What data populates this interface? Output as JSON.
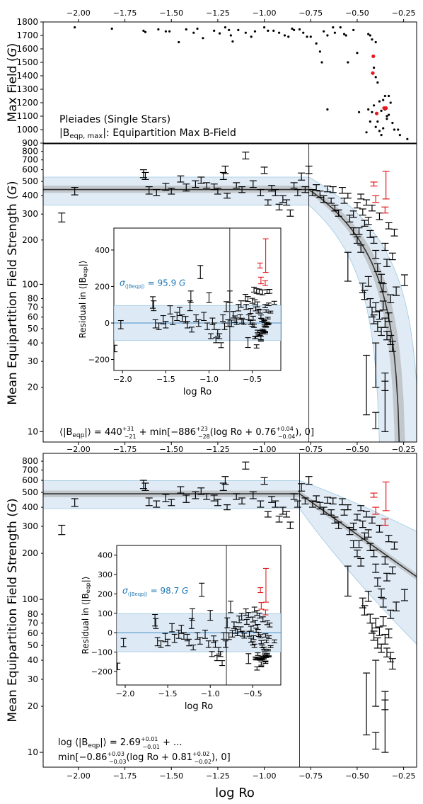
{
  "figure": {
    "xlabel": "log Ro",
    "top_xticks": [
      "−2.00",
      "−1.75",
      "−1.50",
      "−1.25",
      "−1.00",
      "−0.75",
      "−0.50",
      "−0.25"
    ]
  },
  "chart_data": [
    {
      "id": "top",
      "type": "scatter",
      "ylabel": "Max Field (G)",
      "ylim": [
        900,
        1800
      ],
      "xlim": [
        -2.19,
        -0.18
      ],
      "yticks": [
        900,
        1000,
        1100,
        1200,
        1300,
        1400,
        1500,
        1600,
        1700,
        1800
      ],
      "annotation_line1": "Pleiades (Single Stars)",
      "annotation_line2": "|B",
      "annotation_sub": "eqp, max",
      "annotation_tail": "|: Equipartition Max B-Field",
      "colors": {
        "normal": "#000000",
        "highlight": "#e41a1c"
      },
      "points": [
        {
          "x": -2.02,
          "y": 1760
        },
        {
          "x": -1.82,
          "y": 1750
        },
        {
          "x": -1.65,
          "y": 1735
        },
        {
          "x": -1.64,
          "y": 1725
        },
        {
          "x": -1.57,
          "y": 1745
        },
        {
          "x": -1.53,
          "y": 1730
        },
        {
          "x": -1.51,
          "y": 1730
        },
        {
          "x": -1.46,
          "y": 1650
        },
        {
          "x": -1.42,
          "y": 1745
        },
        {
          "x": -1.38,
          "y": 1720
        },
        {
          "x": -1.36,
          "y": 1750
        },
        {
          "x": -1.33,
          "y": 1680
        },
        {
          "x": -1.27,
          "y": 1735
        },
        {
          "x": -1.24,
          "y": 1715
        },
        {
          "x": -1.21,
          "y": 1760
        },
        {
          "x": -1.19,
          "y": 1740
        },
        {
          "x": -1.18,
          "y": 1700
        },
        {
          "x": -1.17,
          "y": 1655
        },
        {
          "x": -1.14,
          "y": 1740
        },
        {
          "x": -1.1,
          "y": 1720
        },
        {
          "x": -1.07,
          "y": 1690
        },
        {
          "x": -1.05,
          "y": 1730
        },
        {
          "x": -1.0,
          "y": 1760
        },
        {
          "x": -0.98,
          "y": 1735
        },
        {
          "x": -0.95,
          "y": 1735
        },
        {
          "x": -0.92,
          "y": 1720
        },
        {
          "x": -0.89,
          "y": 1700
        },
        {
          "x": -0.87,
          "y": 1690
        },
        {
          "x": -0.85,
          "y": 1750
        },
        {
          "x": -0.84,
          "y": 1740
        },
        {
          "x": -0.81,
          "y": 1745
        },
        {
          "x": -0.79,
          "y": 1720
        },
        {
          "x": -0.77,
          "y": 1690
        },
        {
          "x": -0.75,
          "y": 1690
        },
        {
          "x": -0.72,
          "y": 1640
        },
        {
          "x": -0.7,
          "y": 1580
        },
        {
          "x": -0.69,
          "y": 1500
        },
        {
          "x": -0.68,
          "y": 1730
        },
        {
          "x": -0.66,
          "y": 1700
        },
        {
          "x": -0.63,
          "y": 1760
        },
        {
          "x": -0.62,
          "y": 1720
        },
        {
          "x": -0.59,
          "y": 1760
        },
        {
          "x": -0.57,
          "y": 1710
        },
        {
          "x": -0.56,
          "y": 1700
        },
        {
          "x": -0.55,
          "y": 1500
        },
        {
          "x": -0.52,
          "y": 1740
        },
        {
          "x": -0.5,
          "y": 1570
        },
        {
          "x": -0.66,
          "y": 1150
        },
        {
          "x": -0.49,
          "y": 1130
        },
        {
          "x": -0.44,
          "y": 1710
        },
        {
          "x": -0.43,
          "y": 1700
        },
        {
          "x": -0.42,
          "y": 1670
        },
        {
          "x": -0.41,
          "y": 1460
        },
        {
          "x": -0.4,
          "y": 1650
        },
        {
          "x": -0.4,
          "y": 1390
        },
        {
          "x": -0.39,
          "y": 1350
        },
        {
          "x": -0.38,
          "y": 1210
        },
        {
          "x": -0.37,
          "y": 1140
        },
        {
          "x": -0.36,
          "y": 1220
        },
        {
          "x": -0.35,
          "y": 1150
        },
        {
          "x": -0.35,
          "y": 1250
        },
        {
          "x": -0.34,
          "y": 1080
        },
        {
          "x": -0.33,
          "y": 1250
        },
        {
          "x": -0.32,
          "y": 1200
        },
        {
          "x": -0.31,
          "y": 1050
        },
        {
          "x": -0.3,
          "y": 1000
        },
        {
          "x": -0.42,
          "y": 1130
        },
        {
          "x": -0.43,
          "y": 1060
        },
        {
          "x": -0.44,
          "y": 1150
        },
        {
          "x": -0.45,
          "y": 980
        },
        {
          "x": -0.41,
          "y": 1180
        },
        {
          "x": -0.39,
          "y": 1060
        },
        {
          "x": -0.38,
          "y": 990
        },
        {
          "x": -0.37,
          "y": 960
        },
        {
          "x": -0.36,
          "y": 1010
        },
        {
          "x": -0.4,
          "y": 1020
        },
        {
          "x": -0.28,
          "y": 1000
        },
        {
          "x": -0.27,
          "y": 960
        },
        {
          "x": -0.23,
          "y": 930
        },
        {
          "x": -0.34,
          "y": 1100
        },
        {
          "x": -0.33,
          "y": 1110
        },
        {
          "x": -0.413,
          "y": 1545,
          "hl": true
        },
        {
          "x": -0.416,
          "y": 1420,
          "hl": true
        },
        {
          "x": -0.395,
          "y": 1120,
          "hl": true
        },
        {
          "x": -0.355,
          "y": 1160,
          "hl": true
        },
        {
          "x": -0.345,
          "y": 1160,
          "hl": true
        }
      ]
    },
    {
      "id": "middle",
      "type": "scatter",
      "ylabel": "Mean Equipartition Field Strength (G)",
      "yscale": "log",
      "ylim": [
        8.5,
        900
      ],
      "xlim": [
        -2.19,
        -0.18
      ],
      "yticks": [
        10,
        20,
        30,
        40,
        50,
        60,
        70,
        80,
        100,
        200,
        300,
        400,
        500,
        600,
        700,
        800
      ],
      "break_x": -0.76,
      "model": {
        "plateau": 440,
        "slope": -886,
        "offset": 0.76
      },
      "formula_a": "⟨|B",
      "formula_b": "eqp",
      "formula_c": "|⟩ = 440",
      "formula_d": "+31",
      "formula_e": "−21",
      "formula_f": " + min[−886",
      "formula_g": "+23",
      "formula_h": "−28",
      "formula_i": "(log Ro + 0.76",
      "formula_j": "+0.04",
      "formula_k": "−0.04",
      "formula_l": "), 0]",
      "inset": {
        "xlabel": "log Ro",
        "ylabel": "Residual in ⟨|B",
        "ylabel_sub": "eqp",
        "ylabel_tail": "|⟩",
        "sigma_a": "σ",
        "sigma_sub": "⟨|B",
        "sigma_sub2": "eqp",
        "sigma_sub3": "|⟩",
        "sigma_b": " = 95.9 ",
        "sigma_unit": "G",
        "sigma": 95.9,
        "xlim": [
          -2.1,
          -0.17
        ],
        "ylim": [
          -260,
          520
        ],
        "xticks": [
          "−2.0",
          "−1.5",
          "−1.0",
          "−0.5"
        ],
        "xtick_vals": [
          -2.0,
          -1.5,
          -1.0,
          -0.5
        ],
        "yticks": [
          "−200",
          "0",
          "200",
          "400"
        ],
        "ytick_vals": [
          -200,
          0,
          200,
          400
        ],
        "break_x": -0.76
      }
    },
    {
      "id": "bottom",
      "type": "scatter",
      "ylabel": "Mean Equipartition Field Strength (G)",
      "yscale": "log",
      "ylim": [
        8.0,
        900
      ],
      "xlim": [
        -2.19,
        -0.18
      ],
      "yticks": [
        10,
        20,
        30,
        40,
        50,
        60,
        70,
        80,
        100,
        200,
        300,
        400,
        500,
        600,
        700,
        800
      ],
      "break_x": -0.81,
      "model": {
        "plateau_log": 2.69,
        "slope": -0.86,
        "offset": 0.81
      },
      "formula1_a": "log ⟨|B",
      "formula1_b": "eqp",
      "formula1_c": "|⟩ = 2.69",
      "formula1_d": "+0.01",
      "formula1_e": "−0.01",
      "formula1_f": " + ...",
      "formula2_a": "min[−0.86",
      "formula2_b": "+0.03",
      "formula2_c": "−0.03",
      "formula2_d": "(log Ro + 0.81",
      "formula2_e": "+0.02",
      "formula2_f": "−0.02",
      "formula2_g": "), 0]",
      "inset": {
        "xlabel": "log Ro",
        "ylabel": "Residual in ⟨|B",
        "ylabel_sub": "eqp",
        "ylabel_tail": "|⟩",
        "sigma_a": "σ",
        "sigma_sub": "⟨|B",
        "sigma_sub2": "eqp",
        "sigma_sub3": "|⟩",
        "sigma_b": " = 98.7 ",
        "sigma_unit": "G",
        "sigma": 98.7,
        "xlim": [
          -2.1,
          -0.17
        ],
        "ylim": [
          -270,
          450
        ],
        "xticks": [
          "−2.0",
          "−1.5",
          "−1.0",
          "−0.5"
        ],
        "xtick_vals": [
          -2.0,
          -1.5,
          -1.0,
          -0.5
        ],
        "yticks": [
          "−200",
          "−100",
          "0",
          "100",
          "200",
          "300",
          "400"
        ],
        "ytick_vals": [
          -200,
          -100,
          0,
          100,
          200,
          300,
          400
        ],
        "break_x": -0.81
      }
    }
  ],
  "errorbars_main": [
    {
      "x": -2.09,
      "y": 285,
      "lo": 265,
      "hi": 305
    },
    {
      "x": -2.02,
      "y": 430,
      "lo": 405,
      "hi": 455
    },
    {
      "x": -1.65,
      "y": 565,
      "lo": 530,
      "hi": 600
    },
    {
      "x": -1.64,
      "y": 545,
      "lo": 515,
      "hi": 575
    },
    {
      "x": -1.62,
      "y": 435,
      "lo": 410,
      "hi": 460
    },
    {
      "x": -1.58,
      "y": 420,
      "lo": 400,
      "hi": 440
    },
    {
      "x": -1.53,
      "y": 460,
      "lo": 435,
      "hi": 485
    },
    {
      "x": -1.5,
      "y": 430,
      "lo": 410,
      "hi": 450
    },
    {
      "x": -1.45,
      "y": 520,
      "lo": 495,
      "hi": 545
    },
    {
      "x": -1.42,
      "y": 455,
      "lo": 430,
      "hi": 480
    },
    {
      "x": -1.37,
      "y": 480,
      "lo": 455,
      "hi": 505
    },
    {
      "x": -1.34,
      "y": 510,
      "lo": 485,
      "hi": 535
    },
    {
      "x": -1.31,
      "y": 470,
      "lo": 450,
      "hi": 490
    },
    {
      "x": -1.27,
      "y": 460,
      "lo": 440,
      "hi": 480
    },
    {
      "x": -1.25,
      "y": 430,
      "lo": 410,
      "hi": 450
    },
    {
      "x": -1.22,
      "y": 545,
      "lo": 515,
      "hi": 575
    },
    {
      "x": -1.21,
      "y": 600,
      "lo": 565,
      "hi": 635
    },
    {
      "x": -1.2,
      "y": 400,
      "lo": 385,
      "hi": 415
    },
    {
      "x": -1.15,
      "y": 470,
      "lo": 450,
      "hi": 490
    },
    {
      "x": -1.12,
      "y": 440,
      "lo": 420,
      "hi": 460
    },
    {
      "x": -1.1,
      "y": 750,
      "lo": 710,
      "hi": 790
    },
    {
      "x": -1.06,
      "y": 480,
      "lo": 455,
      "hi": 505
    },
    {
      "x": -1.02,
      "y": 420,
      "lo": 400,
      "hi": 440
    },
    {
      "x": -1.0,
      "y": 595,
      "lo": 565,
      "hi": 625
    },
    {
      "x": -0.98,
      "y": 360,
      "lo": 345,
      "hi": 375
    },
    {
      "x": -0.96,
      "y": 450,
      "lo": 430,
      "hi": 470
    },
    {
      "x": -0.94,
      "y": 420,
      "lo": 400,
      "hi": 440
    },
    {
      "x": -0.92,
      "y": 335,
      "lo": 320,
      "hi": 350
    },
    {
      "x": -0.9,
      "y": 380,
      "lo": 360,
      "hi": 400
    },
    {
      "x": -0.88,
      "y": 360,
      "lo": 345,
      "hi": 375
    },
    {
      "x": -0.86,
      "y": 305,
      "lo": 290,
      "hi": 320
    },
    {
      "x": -0.84,
      "y": 470,
      "lo": 450,
      "hi": 490
    },
    {
      "x": -0.82,
      "y": 420,
      "lo": 400,
      "hi": 440
    },
    {
      "x": -0.8,
      "y": 540,
      "lo": 510,
      "hi": 570
    },
    {
      "x": -0.78,
      "y": 440,
      "lo": 420,
      "hi": 460
    },
    {
      "x": -0.76,
      "y": 600,
      "lo": 565,
      "hi": 635
    },
    {
      "x": -0.74,
      "y": 420,
      "lo": 400,
      "hi": 440
    },
    {
      "x": -0.72,
      "y": 455,
      "lo": 435,
      "hi": 475
    },
    {
      "x": -0.7,
      "y": 410,
      "lo": 390,
      "hi": 430
    },
    {
      "x": -0.68,
      "y": 380,
      "lo": 360,
      "hi": 400
    },
    {
      "x": -0.66,
      "y": 445,
      "lo": 425,
      "hi": 465
    },
    {
      "x": -0.64,
      "y": 370,
      "lo": 355,
      "hi": 385
    },
    {
      "x": -0.63,
      "y": 440,
      "lo": 420,
      "hi": 460
    },
    {
      "x": -0.62,
      "y": 330,
      "lo": 315,
      "hi": 345
    },
    {
      "x": -0.6,
      "y": 305,
      "lo": 290,
      "hi": 320
    },
    {
      "x": -0.58,
      "y": 435,
      "lo": 415,
      "hi": 455
    },
    {
      "x": -0.57,
      "y": 370,
      "lo": 355,
      "hi": 385
    },
    {
      "x": -0.55,
      "y": 400,
      "lo": 385,
      "hi": 415
    },
    {
      "x": -0.54,
      "y": 280,
      "lo": 265,
      "hi": 295
    },
    {
      "x": -0.52,
      "y": 300,
      "lo": 285,
      "hi": 315
    },
    {
      "x": -0.5,
      "y": 345,
      "lo": 330,
      "hi": 360
    },
    {
      "x": -0.49,
      "y": 230,
      "lo": 218,
      "hi": 242
    },
    {
      "x": -0.48,
      "y": 395,
      "lo": 380,
      "hi": 410
    },
    {
      "x": -0.47,
      "y": 310,
      "lo": 295,
      "hi": 325
    },
    {
      "x": -0.46,
      "y": 260,
      "lo": 248,
      "hi": 272
    },
    {
      "x": -0.45,
      "y": 360,
      "lo": 345,
      "hi": 375
    },
    {
      "x": -0.44,
      "y": 270,
      "lo": 255,
      "hi": 285
    },
    {
      "x": -0.43,
      "y": 220,
      "lo": 208,
      "hi": 232
    },
    {
      "x": -0.42,
      "y": 330,
      "lo": 315,
      "hi": 345
    },
    {
      "x": -0.41,
      "y": 200,
      "lo": 190,
      "hi": 210
    },
    {
      "x": -0.4,
      "y": 160,
      "lo": 150,
      "hi": 170
    },
    {
      "x": -0.39,
      "y": 130,
      "lo": 122,
      "hi": 138
    },
    {
      "x": -0.38,
      "y": 290,
      "lo": 275,
      "hi": 305
    },
    {
      "x": -0.37,
      "y": 110,
      "lo": 103,
      "hi": 117
    },
    {
      "x": -0.36,
      "y": 95,
      "lo": 89,
      "hi": 101
    },
    {
      "x": -0.35,
      "y": 180,
      "lo": 170,
      "hi": 190
    },
    {
      "x": -0.34,
      "y": 140,
      "lo": 132,
      "hi": 148
    },
    {
      "x": -0.33,
      "y": 250,
      "lo": 238,
      "hi": 262
    },
    {
      "x": -0.32,
      "y": 80,
      "lo": 75,
      "hi": 85
    },
    {
      "x": -0.31,
      "y": 155,
      "lo": 147,
      "hi": 163
    },
    {
      "x": -0.3,
      "y": 225,
      "lo": 213,
      "hi": 237
    },
    {
      "x": -0.29,
      "y": 90,
      "lo": 84,
      "hi": 96
    },
    {
      "x": -0.43,
      "y": 75,
      "lo": 70,
      "hi": 80
    },
    {
      "x": -0.42,
      "y": 65,
      "lo": 60,
      "hi": 70
    },
    {
      "x": -0.41,
      "y": 58,
      "lo": 54,
      "hi": 62
    },
    {
      "x": -0.4,
      "y": 70,
      "lo": 65,
      "hi": 75
    },
    {
      "x": -0.39,
      "y": 52,
      "lo": 48,
      "hi": 56
    },
    {
      "x": -0.38,
      "y": 62,
      "lo": 58,
      "hi": 66
    },
    {
      "x": -0.37,
      "y": 48,
      "lo": 45,
      "hi": 51
    },
    {
      "x": -0.36,
      "y": 72,
      "lo": 67,
      "hi": 77
    },
    {
      "x": -0.35,
      "y": 55,
      "lo": 51,
      "hi": 59
    },
    {
      "x": -0.34,
      "y": 45,
      "lo": 42,
      "hi": 48
    },
    {
      "x": -0.33,
      "y": 60,
      "lo": 56,
      "hi": 64
    },
    {
      "x": -0.32,
      "y": 42,
      "lo": 39,
      "hi": 45
    },
    {
      "x": -0.31,
      "y": 38,
      "lo": 35,
      "hi": 41
    },
    {
      "x": -0.47,
      "y": 95,
      "lo": 88,
      "hi": 102
    },
    {
      "x": -0.46,
      "y": 85,
      "lo": 79,
      "hi": 91
    },
    {
      "x": -0.44,
      "y": 105,
      "lo": 97,
      "hi": 113
    },
    {
      "x": -0.4,
      "y": 30,
      "lo": 20,
      "hi": 40
    },
    {
      "x": -0.45,
      "y": 23,
      "lo": 13,
      "hi": 33
    },
    {
      "x": -0.35,
      "y": 22,
      "lo": 19,
      "hi": 25
    },
    {
      "x": -0.35,
      "y": 16,
      "lo": 10,
      "hi": 22
    },
    {
      "x": -0.4,
      "y": 12,
      "lo": 10.5,
      "hi": 13.5
    },
    {
      "x": -0.55,
      "y": 135,
      "lo": 105,
      "hi": 165
    },
    {
      "x": -0.245,
      "y": 107,
      "lo": 98,
      "hi": 116
    },
    {
      "x": -0.52,
      "y": 230,
      "lo": 218,
      "hi": 242
    },
    {
      "x": -0.5,
      "y": 200,
      "lo": 190,
      "hi": 210
    },
    {
      "x": -0.48,
      "y": 175,
      "lo": 165,
      "hi": 185
    }
  ],
  "errorbars_red": [
    {
      "x": -0.41,
      "y": 480,
      "lo": 465,
      "hi": 495
    },
    {
      "x": -0.4,
      "y": 380,
      "lo": 360,
      "hi": 400
    },
    {
      "x": -0.345,
      "y": 470,
      "lo": 380,
      "hi": 585
    },
    {
      "x": -0.35,
      "y": 320,
      "lo": 305,
      "hi": 335
    }
  ],
  "residual_scale": {
    "mid_factor": 0.9,
    "bot_factor": 0.85
  }
}
